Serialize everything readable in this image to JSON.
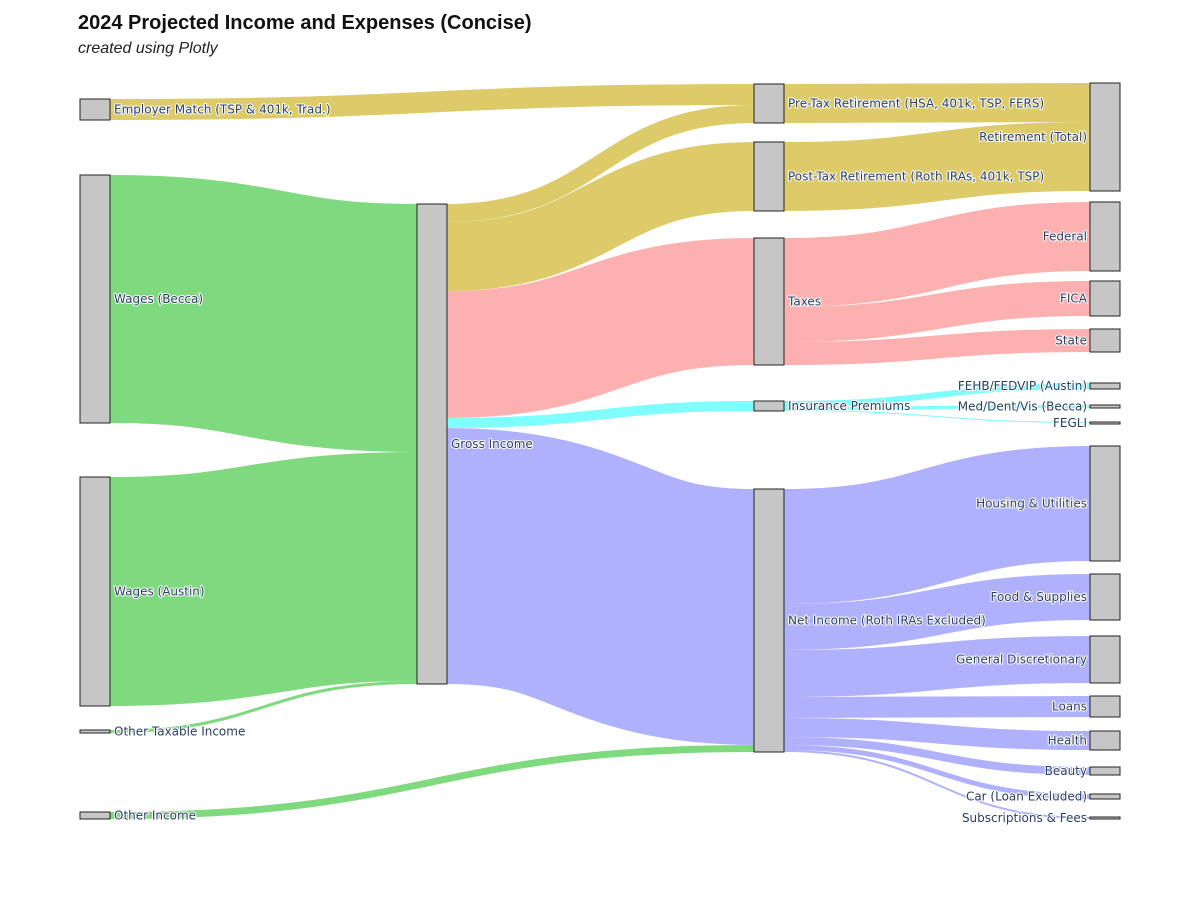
{
  "title": "2024 Projected Income and Expenses (Concise)",
  "subtitle": "created using Plotly",
  "chart_data": {
    "type": "sankey",
    "title": "2024 Projected Income and Expenses (Concise)",
    "subtitle": "created using Plotly",
    "colors": {
      "income": "#7fd97f",
      "retirement": "#ddcb69",
      "taxes": "#fdb0b0",
      "insurance": "#7ffefe",
      "net": "#b0b1fc",
      "node": "#c6c6c6"
    },
    "nodes": [
      {
        "id": "employer",
        "label": "Employer Match (TSP & 401k, Trad.)",
        "column": 0,
        "label_side": "right"
      },
      {
        "id": "wages_becca",
        "label": "Wages (Becca)",
        "column": 0,
        "label_side": "right"
      },
      {
        "id": "wages_austin",
        "label": "Wages (Austin)",
        "column": 0,
        "label_side": "right"
      },
      {
        "id": "other_taxable",
        "label": "Other Taxable Income",
        "column": 0,
        "label_side": "right"
      },
      {
        "id": "other_income",
        "label": "Other Income",
        "column": 0,
        "label_side": "right"
      },
      {
        "id": "gross",
        "label": "Gross Income",
        "column": 1,
        "label_side": "right"
      },
      {
        "id": "pretax",
        "label": "Pre-Tax Retirement (HSA, 401k, TSP, FERS)",
        "column": 2,
        "label_side": "right"
      },
      {
        "id": "posttax",
        "label": "Post-Tax Retirement (Roth IRAs, 401k, TSP)",
        "column": 2,
        "label_side": "right"
      },
      {
        "id": "taxes",
        "label": "Taxes",
        "column": 2,
        "label_side": "right"
      },
      {
        "id": "insurance",
        "label": "Insurance Premiums",
        "column": 2,
        "label_side": "right"
      },
      {
        "id": "net",
        "label": "Net Income (Roth IRAs Excluded)",
        "column": 2,
        "label_side": "right"
      },
      {
        "id": "retirement_total",
        "label": "Retirement (Total)",
        "column": 3,
        "label_side": "left"
      },
      {
        "id": "federal",
        "label": "Federal",
        "column": 3,
        "label_side": "left"
      },
      {
        "id": "fica",
        "label": "FICA",
        "column": 3,
        "label_side": "left"
      },
      {
        "id": "state",
        "label": "State",
        "column": 3,
        "label_side": "left"
      },
      {
        "id": "fehb",
        "label": "FEHB/FEDVIP (Austin)",
        "column": 3,
        "label_side": "left"
      },
      {
        "id": "meddent",
        "label": "Med/Dent/Vis (Becca)",
        "column": 3,
        "label_side": "left"
      },
      {
        "id": "fegli",
        "label": "FEGLI",
        "column": 3,
        "label_side": "left"
      },
      {
        "id": "housing",
        "label": "Housing & Utilities",
        "column": 3,
        "label_side": "left"
      },
      {
        "id": "food",
        "label": "Food & Supplies",
        "column": 3,
        "label_side": "left"
      },
      {
        "id": "general",
        "label": "General Discretionary",
        "column": 3,
        "label_side": "left"
      },
      {
        "id": "loans",
        "label": "Loans",
        "column": 3,
        "label_side": "left"
      },
      {
        "id": "health",
        "label": "Health",
        "column": 3,
        "label_side": "left"
      },
      {
        "id": "beauty",
        "label": "Beauty",
        "column": 3,
        "label_side": "left"
      },
      {
        "id": "car",
        "label": "Car (Loan Excluded)",
        "column": 3,
        "label_side": "left"
      },
      {
        "id": "subs",
        "label": "Subscriptions & Fees",
        "column": 3,
        "label_side": "left"
      }
    ],
    "links": [
      {
        "source": "employer",
        "target": "pretax",
        "value": 21,
        "color": "#ddcb69"
      },
      {
        "source": "wages_becca",
        "target": "gross",
        "value": 248,
        "color": "#7fd97f"
      },
      {
        "source": "wages_austin",
        "target": "gross",
        "value": 229,
        "color": "#7fd97f"
      },
      {
        "source": "other_taxable",
        "target": "gross",
        "value": 3,
        "color": "#7fd97f"
      },
      {
        "source": "gross",
        "target": "pretax",
        "value": 18,
        "color": "#ddcb69"
      },
      {
        "source": "gross",
        "target": "posttax",
        "value": 69,
        "color": "#ddcb69"
      },
      {
        "source": "gross",
        "target": "taxes",
        "value": 127,
        "color": "#fdb0b0"
      },
      {
        "source": "gross",
        "target": "insurance",
        "value": 10,
        "color": "#7ffefe"
      },
      {
        "source": "gross",
        "target": "net",
        "value": 256,
        "color": "#b0b1fc"
      },
      {
        "source": "other_income",
        "target": "net",
        "value": 7,
        "color": "#7fd97f"
      },
      {
        "source": "pretax",
        "target": "retirement_total",
        "value": 39,
        "color": "#ddcb69"
      },
      {
        "source": "posttax",
        "target": "retirement_total",
        "value": 69,
        "color": "#ddcb69"
      },
      {
        "source": "taxes",
        "target": "federal",
        "value": 69,
        "color": "#fdb0b0"
      },
      {
        "source": "taxes",
        "target": "fica",
        "value": 35,
        "color": "#fdb0b0"
      },
      {
        "source": "taxes",
        "target": "state",
        "value": 23,
        "color": "#fdb0b0"
      },
      {
        "source": "insurance",
        "target": "fehb",
        "value": 6,
        "color": "#7ffefe"
      },
      {
        "source": "insurance",
        "target": "meddent",
        "value": 3,
        "color": "#7ffefe"
      },
      {
        "source": "insurance",
        "target": "fegli",
        "value": 1,
        "color": "#7ffefe"
      },
      {
        "source": "net",
        "target": "housing",
        "value": 115,
        "color": "#b0b1fc"
      },
      {
        "source": "net",
        "target": "food",
        "value": 46,
        "color": "#b0b1fc"
      },
      {
        "source": "net",
        "target": "general",
        "value": 47,
        "color": "#b0b1fc"
      },
      {
        "source": "net",
        "target": "loans",
        "value": 21,
        "color": "#b0b1fc"
      },
      {
        "source": "net",
        "target": "health",
        "value": 19,
        "color": "#b0b1fc"
      },
      {
        "source": "net",
        "target": "beauty",
        "value": 8,
        "color": "#b0b1fc"
      },
      {
        "source": "net",
        "target": "car",
        "value": 5,
        "color": "#b0b1fc"
      },
      {
        "source": "net",
        "target": "subs",
        "value": 2,
        "color": "#b0b1fc"
      }
    ]
  }
}
